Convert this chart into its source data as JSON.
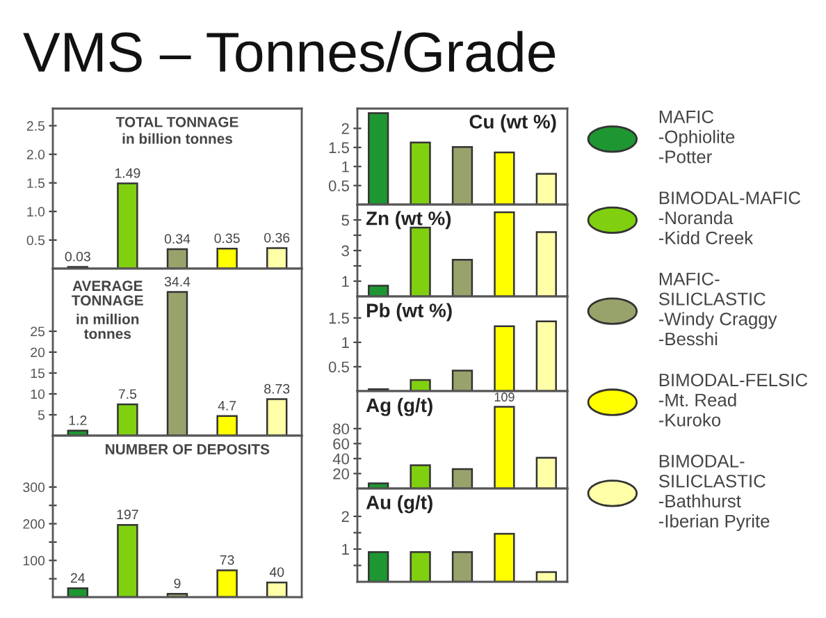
{
  "chart_data": [
    {
      "type": "other",
      "title": "VMS – Tonnes/Grade"
    },
    {
      "type": "bar",
      "title": "TOTAL TONNAGE",
      "subtitle": "in billion tonnes",
      "categories": [
        null
      ],
      "series": [
        {
          "color": "#1e9632",
          "values": [
            0.03
          ]
        },
        {
          "color": "#80d010",
          "values": [
            1.49
          ]
        },
        {
          "color": "#97a36b",
          "values": [
            0.34
          ]
        },
        {
          "color": "#ffff00",
          "values": [
            0.35
          ]
        },
        {
          "color": "#ffffa8",
          "values": [
            0.36
          ]
        }
      ],
      "ylim": [
        0,
        2.8
      ],
      "yticks": [
        0.5,
        {
          "value": 1,
          "label": "1.0"
        },
        1.5,
        {
          "value": 2,
          "label": "2.0"
        },
        2.5
      ],
      "data_labels": true,
      "tick_labels": "y"
    },
    {
      "type": "bar",
      "title": "AVERAGE\nTONNAGE",
      "subtitle": "in million\ntonnes",
      "categories": [
        null
      ],
      "series": [
        {
          "color": "#1e9632",
          "values": [
            1.2
          ]
        },
        {
          "color": "#80d010",
          "values": [
            7.5
          ]
        },
        {
          "color": "#97a36b",
          "values": [
            34.4
          ]
        },
        {
          "color": "#ffff00",
          "values": [
            4.7
          ]
        },
        {
          "color": "#ffffa8",
          "values": [
            8.73
          ]
        }
      ],
      "ylim": [
        0,
        40
      ],
      "yticks": [
        5,
        10,
        15,
        20,
        25
      ],
      "data_labels": true,
      "tick_labels": "y"
    },
    {
      "type": "bar",
      "title": "NUMBER OF DEPOSITS",
      "categories": [
        null
      ],
      "series": [
        {
          "color": "#1e9632",
          "values": [
            24
          ]
        },
        {
          "color": "#80d010",
          "values": [
            197
          ]
        },
        {
          "color": "#97a36b",
          "values": [
            9
          ]
        },
        {
          "color": "#ffff00",
          "values": [
            73
          ]
        },
        {
          "color": "#ffffa8",
          "values": [
            40
          ]
        }
      ],
      "ylim": [
        0,
        440
      ],
      "yticks": [
        {
          "value": 50,
          "label": null
        },
        100,
        {
          "value": 150,
          "label": null
        },
        200,
        {
          "value": 250,
          "label": null
        },
        300
      ],
      "data_labels": true,
      "tick_labels": "y"
    },
    {
      "type": "bar",
      "title": "Cu (wt %)",
      "categories": [
        null
      ],
      "series": [
        {
          "name": "MAFIC\n-Ophiolite\n-Potter",
          "color": "#1e9632",
          "values": [
            2.4
          ]
        },
        {
          "name": "BIMODAL-MAFIC\n-Noranda\n-Kidd Creek",
          "color": "#80d010",
          "values": [
            1.63
          ]
        },
        {
          "name": "MAFIC-\nSILICLASTIC\n-Windy Craggy\n-Besshi",
          "color": "#97a36b",
          "values": [
            1.51
          ]
        },
        {
          "name": "BIMODAL-FELSIC\n-Mt. Read\n-Kuroko",
          "color": "#ffff00",
          "values": [
            1.37
          ]
        },
        {
          "name": "BIMODAL-\nSILICLASTIC\n-Bathhurst\n-Iberian Pyrite",
          "color": "#ffffa8",
          "values": [
            0.81
          ]
        }
      ],
      "ylim": [
        0,
        2.52
      ],
      "yticks": [
        0.5,
        1,
        1.5,
        2
      ],
      "legend": "right",
      "tick_labels": "y"
    },
    {
      "type": "bar",
      "title": "Zn (wt %)",
      "categories": [
        null
      ],
      "series": [
        {
          "color": "#1e9632",
          "values": [
            0.7
          ]
        },
        {
          "color": "#80d010",
          "values": [
            4.5
          ]
        },
        {
          "color": "#97a36b",
          "values": [
            2.4
          ]
        },
        {
          "color": "#ffff00",
          "values": [
            5.5
          ]
        },
        {
          "color": "#ffffa8",
          "values": [
            4.2
          ]
        }
      ],
      "ylim": [
        0,
        6
      ],
      "yticks": [
        1,
        {
          "value": 2,
          "label": null
        },
        3,
        {
          "value": 4,
          "label": null
        },
        5
      ],
      "tick_labels": "y"
    },
    {
      "type": "bar",
      "title": "Pb (wt %)",
      "categories": [
        null
      ],
      "series": [
        {
          "color": "#1e9632",
          "values": [
            0.04
          ]
        },
        {
          "color": "#80d010",
          "values": [
            0.23
          ]
        },
        {
          "color": "#97a36b",
          "values": [
            0.42
          ]
        },
        {
          "color": "#ffff00",
          "values": [
            1.33
          ]
        },
        {
          "color": "#ffffa8",
          "values": [
            1.43
          ]
        }
      ],
      "ylim": [
        0,
        1.94
      ],
      "yticks": [
        0.5,
        1,
        1.5
      ],
      "tick_labels": "y"
    },
    {
      "type": "bar",
      "title": "Ag (g/t)",
      "categories": [
        null
      ],
      "series": [
        {
          "color": "#1e9632",
          "values": [
            7
          ]
        },
        {
          "color": "#80d010",
          "values": [
            31
          ]
        },
        {
          "color": "#97a36b",
          "values": [
            26
          ]
        },
        {
          "color": "#ffff00",
          "values": [
            109
          ],
          "value_labels": [
            "109"
          ]
        },
        {
          "color": "#ffffa8",
          "values": [
            41
          ]
        }
      ],
      "ylim": [
        0,
        130
      ],
      "yticks": [
        20,
        40,
        60,
        80
      ],
      "tick_labels": "y"
    },
    {
      "type": "bar",
      "title": "Au (g/t)",
      "categories": [
        null
      ],
      "series": [
        {
          "color": "#1e9632",
          "values": [
            0.91
          ]
        },
        {
          "color": "#80d010",
          "values": [
            0.91
          ]
        },
        {
          "color": "#97a36b",
          "values": [
            0.91
          ]
        },
        {
          "color": "#ffff00",
          "values": [
            1.47
          ]
        },
        {
          "color": "#ffffa8",
          "values": [
            0.3
          ]
        }
      ],
      "ylim": [
        0,
        2.85
      ],
      "yticks": [
        {
          "value": 0.5,
          "label": null
        },
        1,
        {
          "value": 1.5,
          "label": null
        },
        2
      ],
      "tick_labels": "y"
    }
  ]
}
